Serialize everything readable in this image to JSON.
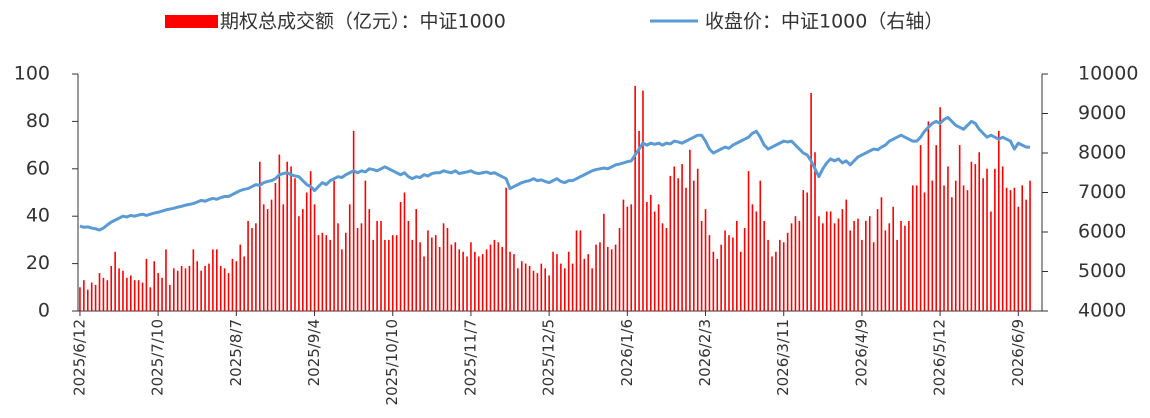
{
  "chart_data": {
    "type": "bar-line",
    "categories": [
      "2025/6/12",
      null,
      null,
      null,
      null,
      null,
      null,
      null,
      null,
      null,
      null,
      null,
      null,
      null,
      null,
      null,
      null,
      null,
      null,
      null,
      "2025/7/10",
      null,
      null,
      null,
      null,
      null,
      null,
      null,
      null,
      null,
      null,
      null,
      null,
      null,
      null,
      null,
      null,
      null,
      null,
      null,
      "2025/8/7",
      null,
      null,
      null,
      null,
      null,
      null,
      null,
      null,
      null,
      null,
      null,
      null,
      null,
      null,
      null,
      null,
      null,
      null,
      null,
      "2025/9/4",
      null,
      null,
      null,
      null,
      null,
      null,
      null,
      null,
      null,
      null,
      null,
      null,
      null,
      null,
      null,
      null,
      null,
      null,
      null,
      "2025/10/10",
      null,
      null,
      null,
      null,
      null,
      null,
      null,
      null,
      null,
      null,
      null,
      null,
      null,
      null,
      null,
      null,
      null,
      null,
      null,
      "2025/11/7",
      null,
      null,
      null,
      null,
      null,
      null,
      null,
      null,
      null,
      null,
      null,
      null,
      null,
      null,
      null,
      null,
      null,
      null,
      null,
      "2025/12/5",
      null,
      null,
      null,
      null,
      null,
      null,
      null,
      null,
      null,
      null,
      null,
      null,
      null,
      null,
      null,
      null,
      null,
      null,
      null,
      "2026/1/6",
      null,
      null,
      null,
      null,
      null,
      null,
      null,
      null,
      null,
      null,
      null,
      null,
      null,
      null,
      null,
      null,
      null,
      null,
      null,
      "2026/2/3",
      null,
      null,
      null,
      null,
      null,
      null,
      null,
      null,
      null,
      null,
      null,
      null,
      null,
      null,
      null,
      null,
      null,
      null,
      null,
      "2026/3/11",
      null,
      null,
      null,
      null,
      null,
      null,
      null,
      null,
      null,
      null,
      null,
      null,
      null,
      null,
      null,
      null,
      null,
      null,
      null,
      "2026/4/9",
      null,
      null,
      null,
      null,
      null,
      null,
      null,
      null,
      null,
      null,
      null,
      null,
      null,
      null,
      null,
      null,
      null,
      null,
      null,
      "2026/5/12",
      null,
      null,
      null,
      null,
      null,
      null,
      null,
      null,
      null,
      null,
      null,
      null,
      null,
      null,
      null,
      null,
      null,
      null,
      null,
      "2026/6/9",
      null,
      null,
      null
    ],
    "series": [
      {
        "name": "期权总成交额（亿元）：中证1000",
        "type": "bar",
        "color": "#ff0000",
        "axis": "y",
        "values": [
          10,
          13,
          9,
          12,
          11,
          16,
          14,
          13,
          19,
          25,
          18,
          17,
          14,
          15,
          13,
          13,
          12,
          22,
          10,
          21,
          16,
          14,
          26,
          11,
          18,
          17,
          19,
          18,
          19,
          26,
          21,
          17,
          19,
          20,
          26,
          26,
          19,
          18,
          16,
          22,
          21,
          28,
          23,
          38,
          35,
          37,
          63,
          45,
          43,
          47,
          54,
          66,
          45,
          63,
          61,
          56,
          40,
          43,
          50,
          59,
          45,
          32,
          33,
          32,
          30,
          55,
          37,
          26,
          33,
          45,
          76,
          35,
          37,
          55,
          43,
          30,
          38,
          38,
          30,
          30,
          32,
          32,
          46,
          50,
          38,
          30,
          43,
          29,
          23,
          34,
          31,
          32,
          27,
          37,
          35,
          28,
          29,
          26,
          25,
          23,
          29,
          25,
          23,
          24,
          26,
          28,
          30,
          29,
          27,
          52,
          25,
          24,
          18,
          21,
          20,
          19,
          17,
          16,
          20,
          18,
          15,
          25,
          24,
          20,
          18,
          25,
          20,
          34,
          34,
          22,
          24,
          18,
          28,
          29,
          41,
          27,
          26,
          28,
          35,
          47,
          44,
          45,
          95,
          76,
          93,
          46,
          49,
          42,
          45,
          37,
          35,
          57,
          61,
          56,
          62,
          52,
          68,
          55,
          60,
          38,
          43,
          32,
          25,
          22,
          28,
          34,
          32,
          31,
          38,
          25,
          35,
          59,
          45,
          42,
          55,
          38,
          30,
          23,
          25,
          30,
          29,
          33,
          37,
          40,
          38,
          51,
          50,
          92,
          67,
          40,
          37,
          42,
          42,
          37,
          39,
          43,
          47,
          34,
          38,
          39,
          30,
          38,
          40,
          29,
          43,
          48,
          34,
          37,
          44,
          30,
          38,
          36,
          38,
          53,
          53,
          70,
          50,
          80,
          55,
          70,
          86,
          53,
          61,
          48,
          55,
          70,
          53,
          51,
          63,
          62,
          67,
          56,
          60,
          42,
          60,
          76,
          61,
          52,
          51,
          52,
          44,
          53,
          47,
          55
        ]
      },
      {
        "name": "收盘价：中证1000（右轴）",
        "type": "line",
        "color": "#5b9bd5",
        "axis": "y2",
        "values": [
          6150,
          6120,
          6130,
          6100,
          6080,
          6050,
          6100,
          6180,
          6250,
          6300,
          6350,
          6400,
          6380,
          6420,
          6400,
          6430,
          6450,
          6420,
          6450,
          6480,
          6500,
          6530,
          6560,
          6580,
          6600,
          6630,
          6650,
          6680,
          6700,
          6720,
          6760,
          6800,
          6780,
          6820,
          6850,
          6830,
          6870,
          6900,
          6900,
          6950,
          7000,
          7050,
          7080,
          7100,
          7150,
          7200,
          7180,
          7250,
          7280,
          7300,
          7350,
          7450,
          7480,
          7500,
          7450,
          7420,
          7400,
          7300,
          7200,
          7150,
          7050,
          7150,
          7250,
          7200,
          7300,
          7350,
          7400,
          7380,
          7450,
          7500,
          7550,
          7500,
          7550,
          7520,
          7600,
          7580,
          7550,
          7600,
          7650,
          7600,
          7550,
          7500,
          7450,
          7500,
          7400,
          7350,
          7400,
          7380,
          7450,
          7420,
          7480,
          7500,
          7500,
          7550,
          7520,
          7500,
          7550,
          7480,
          7500,
          7520,
          7550,
          7500,
          7480,
          7500,
          7520,
          7480,
          7500,
          7450,
          7400,
          7350,
          7100,
          7150,
          7200,
          7250,
          7280,
          7300,
          7350,
          7300,
          7320,
          7280,
          7250,
          7300,
          7350,
          7280,
          7250,
          7300,
          7300,
          7350,
          7400,
          7450,
          7500,
          7550,
          7580,
          7600,
          7620,
          7600,
          7650,
          7700,
          7720,
          7750,
          7780,
          7800,
          7950,
          8100,
          8250,
          8200,
          8250,
          8220,
          8250,
          8200,
          8250,
          8230,
          8300,
          8280,
          8250,
          8300,
          8350,
          8400,
          8450,
          8450,
          8300,
          8100,
          8000,
          8050,
          8100,
          8150,
          8120,
          8200,
          8250,
          8300,
          8350,
          8400,
          8500,
          8550,
          8400,
          8200,
          8100,
          8150,
          8200,
          8250,
          8300,
          8280,
          8300,
          8200,
          8100,
          8000,
          7950,
          7800,
          7600,
          7400,
          7600,
          7750,
          7850,
          7800,
          7850,
          7750,
          7800,
          7700,
          7800,
          7900,
          7950,
          8000,
          8050,
          8100,
          8080,
          8150,
          8200,
          8300,
          8350,
          8400,
          8450,
          8400,
          8350,
          8300,
          8300,
          8400,
          8550,
          8650,
          8750,
          8800,
          8750,
          8850,
          8900,
          8800,
          8700,
          8650,
          8600,
          8700,
          8800,
          8750,
          8600,
          8500,
          8400,
          8450,
          8400,
          8350,
          8400,
          8350,
          8300,
          8100,
          8250,
          8200,
          8150,
          8150
        ]
      }
    ],
    "ylim": [
      0,
      100
    ],
    "yticks": [
      0,
      20,
      40,
      60,
      80,
      100
    ],
    "y2lim": [
      4000,
      10000
    ],
    "y2ticks": [
      4000,
      5000,
      6000,
      7000,
      8000,
      9000,
      10000
    ],
    "grid": false,
    "legend": "top"
  }
}
